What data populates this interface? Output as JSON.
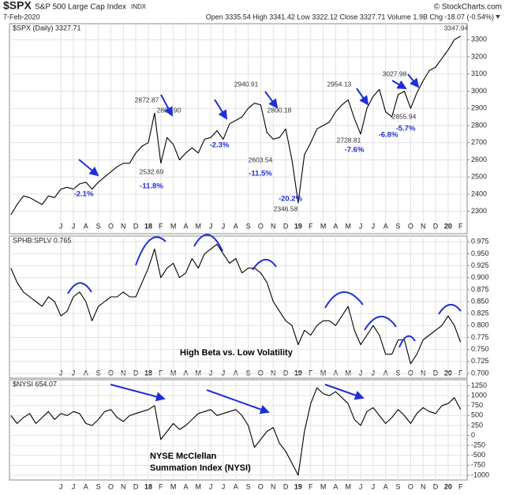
{
  "header": {
    "symbol": "$SPX",
    "name": "S&P 500 Large Cap Index",
    "exchange": "INDX",
    "source": "© StockCharts.com",
    "date": "7-Feb-2020",
    "quote": "Open 3335.54 High 3341.42 Low 3322.12 Close 3327.71 Volume 1.9B Chg -18.07 (-0.54%)"
  },
  "chart_data": [
    {
      "type": "line",
      "title": "$SPX (Daily) 3327.71",
      "color": "#000000",
      "grid": true,
      "xtick_labels": [
        "J",
        "J",
        "A",
        "S",
        "O",
        "N",
        "D",
        "18",
        "F",
        "M",
        "A",
        "M",
        "J",
        "J",
        "A",
        "S",
        "O",
        "N",
        "D",
        "19",
        "F",
        "M",
        "A",
        "M",
        "J",
        "J",
        "A",
        "S",
        "O",
        "N",
        "D",
        "20",
        "F"
      ],
      "values": [
        2280,
        2340,
        2390,
        2380,
        2360,
        2340,
        2390,
        2380,
        2430,
        2440,
        2430,
        2460,
        2470,
        2430,
        2470,
        2500,
        2530,
        2560,
        2580,
        2580,
        2640,
        2680,
        2700,
        2872,
        2581,
        2730,
        2690,
        2600,
        2640,
        2670,
        2640,
        2720,
        2730,
        2770,
        2720,
        2810,
        2830,
        2850,
        2900,
        2930,
        2920,
        2760,
        2720,
        2730,
        2780,
        2600,
        2350,
        2630,
        2700,
        2780,
        2800,
        2820,
        2880,
        2920,
        2950,
        2840,
        2750,
        2900,
        2970,
        3010,
        2880,
        2850,
        2980,
        3000,
        2900,
        2990,
        3060,
        3120,
        3140,
        3190,
        3240,
        3300,
        3320
      ],
      "ylim": [
        2170,
        3393
      ],
      "yticks": [
        2300,
        2400,
        2500,
        2600,
        2700,
        2800,
        2900,
        3000,
        3100,
        3200,
        3300
      ],
      "annotations": [
        "2872.87",
        "2801.90",
        "2532.69",
        "-11.8%",
        "-2.1%",
        "-2.3%",
        "2940.91",
        "2800.18",
        "2603.54",
        "-11.5%",
        "2346.58",
        "-20.2%",
        "2954.13",
        "3027.98",
        "2728.81",
        "-7.6%",
        "-6.8%",
        "2855.94",
        "-5.7%",
        "3347.94"
      ]
    },
    {
      "type": "line",
      "title": "SPHB:SPLV 0.765",
      "color": "#000000",
      "grid": true,
      "xtick_labels": [
        "J",
        "J",
        "A",
        "S",
        "O",
        "N",
        "D",
        "18",
        "F",
        "M",
        "A",
        "M",
        "J",
        "J",
        "A",
        "S",
        "O",
        "N",
        "D",
        "19",
        "F",
        "M",
        "A",
        "M",
        "J",
        "J",
        "A",
        "S",
        "O",
        "N",
        "D",
        "20",
        "F"
      ],
      "values": [
        0.92,
        0.89,
        0.87,
        0.86,
        0.85,
        0.84,
        0.86,
        0.85,
        0.82,
        0.83,
        0.86,
        0.87,
        0.85,
        0.81,
        0.84,
        0.85,
        0.86,
        0.86,
        0.87,
        0.86,
        0.86,
        0.89,
        0.92,
        0.96,
        0.9,
        0.92,
        0.93,
        0.9,
        0.91,
        0.94,
        0.92,
        0.95,
        0.96,
        0.97,
        0.95,
        0.93,
        0.94,
        0.91,
        0.92,
        0.92,
        0.91,
        0.89,
        0.85,
        0.83,
        0.81,
        0.8,
        0.76,
        0.79,
        0.78,
        0.8,
        0.81,
        0.81,
        0.8,
        0.82,
        0.84,
        0.79,
        0.76,
        0.78,
        0.8,
        0.78,
        0.74,
        0.74,
        0.77,
        0.77,
        0.72,
        0.74,
        0.77,
        0.78,
        0.79,
        0.8,
        0.82,
        0.8,
        0.765
      ],
      "ylim": [
        0.69,
        0.987
      ],
      "yticks": [
        {
          "value": 0.7,
          "label": "0.700"
        },
        {
          "value": 0.725,
          "label": "0.725"
        },
        {
          "value": 0.75,
          "label": "0.750"
        },
        {
          "value": 0.775,
          "label": "0.775"
        },
        {
          "value": 0.8,
          "label": "0.800"
        },
        {
          "value": 0.825,
          "label": "0.825"
        },
        {
          "value": 0.85,
          "label": "0.850"
        },
        {
          "value": 0.875,
          "label": "0.875"
        },
        {
          "value": 0.9,
          "label": "0.900"
        },
        {
          "value": 0.925,
          "label": "0.925"
        },
        {
          "value": 0.95,
          "label": "0.950"
        },
        {
          "value": 0.975,
          "label": "0.975"
        }
      ],
      "annotations": [
        "High Beta vs. Low Volatility"
      ]
    },
    {
      "type": "line",
      "title": "$NYSI 654.07",
      "color": "#000000",
      "grid": true,
      "xtick_labels": [
        "J",
        "J",
        "A",
        "S",
        "O",
        "N",
        "D",
        "18",
        "F",
        "M",
        "A",
        "M",
        "J",
        "J",
        "A",
        "S",
        "O",
        "N",
        "D",
        "19",
        "F",
        "M",
        "A",
        "M",
        "J",
        "J",
        "A",
        "S",
        "O",
        "N",
        "D",
        "20",
        "F"
      ],
      "values": [
        500,
        300,
        450,
        550,
        300,
        450,
        600,
        400,
        550,
        500,
        600,
        550,
        300,
        250,
        400,
        600,
        650,
        450,
        350,
        500,
        550,
        600,
        650,
        750,
        -100,
        100,
        300,
        150,
        250,
        400,
        550,
        600,
        650,
        500,
        550,
        600,
        650,
        500,
        250,
        -300,
        -100,
        100,
        200,
        -200,
        -400,
        -700,
        -1000,
        100,
        800,
        1200,
        1050,
        1000,
        1100,
        950,
        800,
        400,
        250,
        600,
        700,
        500,
        300,
        450,
        650,
        500,
        300,
        550,
        700,
        600,
        550,
        750,
        800,
        950,
        654.07
      ],
      "ylim": [
        -1120,
        1400
      ],
      "yticks": [
        -1000,
        -750,
        -500,
        -250,
        0,
        250,
        500,
        750,
        1000,
        1250
      ],
      "annotations": [
        "NYSE McClellan",
        "Summation Index (NYSI)"
      ]
    }
  ]
}
